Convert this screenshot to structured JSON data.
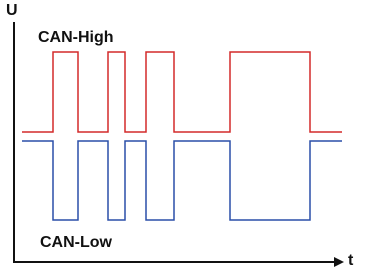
{
  "axes": {
    "y_label": "U",
    "x_label": "t"
  },
  "signals": [
    {
      "label": "CAN-High"
    },
    {
      "label": "CAN-Low"
    }
  ]
}
